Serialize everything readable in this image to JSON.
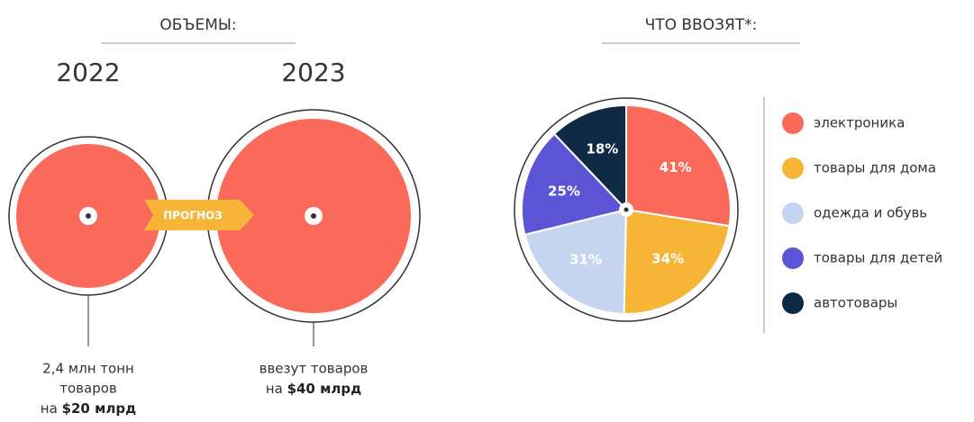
{
  "volumes": {
    "title": "ОБЪЕМЫ:",
    "arrow": "ПРОГНОЗ",
    "years": [
      {
        "year": "2022",
        "caption": [
          "2,4 млн тонн",
          "товаров"
        ],
        "prefix": "на ",
        "amount": "$20 млрд"
      },
      {
        "year": "2023",
        "caption": [
          "ввезут товаров"
        ],
        "prefix": "на ",
        "amount": "$40 млрд"
      }
    ]
  },
  "chart_data": {
    "type": "pie",
    "title": "ЧТО ВВОЗЯТ*:",
    "categories": [
      "электроника",
      "товары для дома",
      "одежда и обувь",
      "товары для детей",
      "автотовары"
    ],
    "values": [
      41,
      34,
      31,
      25,
      18
    ],
    "value_labels": [
      "41%",
      "34%",
      "31%",
      "25%",
      "18%"
    ],
    "colors": [
      "#f96a5b",
      "#f7b538",
      "#c5d5f0",
      "#5b55d6",
      "#0f2a45"
    ],
    "legend": "right"
  }
}
